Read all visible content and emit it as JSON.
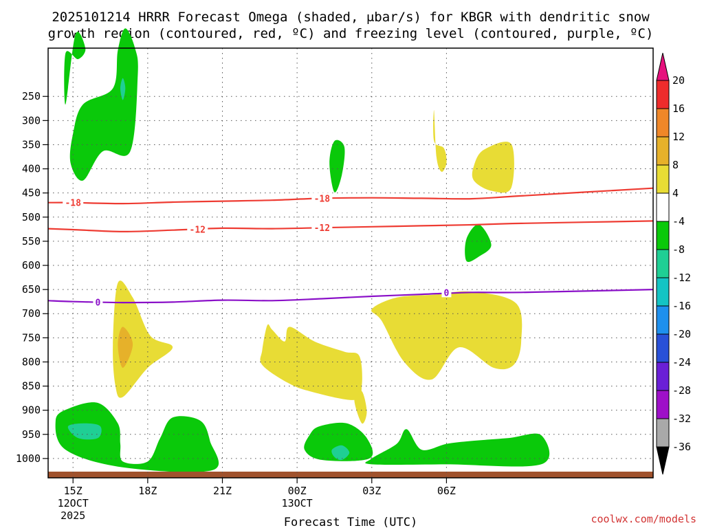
{
  "chart_data": {
    "type": "heatmap",
    "title_lines": [
      "2025101214 HRRR Forecast Omega (shaded, μbar/s) for KBGR with dendritic snow",
      "growth region (contoured, red, ºC) and freezing level (contoured, purple, ºC)"
    ],
    "xlabel": "Forecast Time (UTC)",
    "credit": "coolwx.com/models",
    "x_range_hours": [
      -1.0,
      23.3
    ],
    "y_range_hpa": [
      150,
      1040
    ],
    "y_ticks": [
      250,
      300,
      350,
      400,
      450,
      500,
      550,
      600,
      650,
      700,
      750,
      800,
      850,
      900,
      950,
      1000
    ],
    "x_ticks": [
      {
        "h": 0,
        "lines": [
          "15Z",
          "12OCT",
          "2025"
        ]
      },
      {
        "h": 3,
        "lines": [
          "18Z"
        ]
      },
      {
        "h": 6,
        "lines": [
          "21Z"
        ]
      },
      {
        "h": 9,
        "lines": [
          "00Z",
          "13OCT"
        ]
      },
      {
        "h": 12,
        "lines": [
          "03Z"
        ]
      },
      {
        "h": 15,
        "lines": [
          "06Z"
        ]
      }
    ],
    "colorbar": {
      "labels": [
        "20",
        "16",
        "12",
        "8",
        "4",
        "-4",
        "-8",
        "-12",
        "-16",
        "-20",
        "-24",
        "-28",
        "-32",
        "-36"
      ],
      "colors": [
        "#ee2c2c",
        "#ef8728",
        "#e6b12a",
        "#e8dc35",
        "#ffffff",
        "#0ac90a",
        "#1fcf94",
        "#14c4c4",
        "#1e90ee",
        "#2850d8",
        "#6a1fd6",
        "#9e10c8",
        "#a9a9a9"
      ],
      "top_color": "#e6117d",
      "bottom_color": "#000000"
    },
    "ground_color": "#a0522d",
    "regions": [
      {
        "level": "-4",
        "color": "#0ac90a",
        "pts": [
          [
            -0.3,
            440
          ],
          [
            0.1,
            200
          ],
          [
            0.5,
            250
          ],
          [
            0.2,
            285
          ],
          [
            -0.3,
            265
          ]
        ]
      },
      {
        "level": "-4",
        "color": "#0ac90a",
        "pts": [
          [
            -0.1,
            640
          ],
          [
            0.0,
            540
          ],
          [
            0.4,
            440
          ],
          [
            1.6,
            385
          ],
          [
            1.8,
            255
          ],
          [
            2.1,
            180
          ],
          [
            2.5,
            250
          ],
          [
            2.6,
            340
          ],
          [
            2.3,
            600
          ],
          [
            1.2,
            600
          ],
          [
            0.4,
            700
          ]
        ]
      },
      {
        "level": "-8",
        "color": "#1fcf94",
        "pts": [
          [
            1.9,
            385
          ],
          [
            2.0,
            350
          ],
          [
            2.1,
            385
          ],
          [
            2.0,
            425
          ]
        ]
      },
      {
        "level": "-4",
        "color": "#0ac90a",
        "pts": [
          [
            10.3,
            640
          ],
          [
            10.5,
            565
          ],
          [
            10.9,
            585
          ],
          [
            10.8,
            680
          ],
          [
            10.5,
            740
          ]
        ]
      },
      {
        "level": "4",
        "color": "#e8dc35",
        "pts": [
          [
            14.5,
            460
          ],
          [
            14.6,
            620
          ],
          [
            14.8,
            670
          ],
          [
            15.0,
            640
          ],
          [
            14.9,
            590
          ],
          [
            14.5,
            565
          ]
        ]
      },
      {
        "level": "4",
        "color": "#e8dc35",
        "pts": [
          [
            16.1,
            650
          ],
          [
            16.5,
            595
          ],
          [
            17.6,
            575
          ],
          [
            17.6,
            725
          ],
          [
            16.8,
            735
          ],
          [
            16.1,
            700
          ]
        ]
      },
      {
        "level": "-4",
        "color": "#0ac90a",
        "pts": [
          [
            15.8,
            975
          ],
          [
            15.8,
            900
          ],
          [
            16.3,
            850
          ],
          [
            16.8,
            920
          ],
          [
            16.3,
            960
          ]
        ]
      },
      {
        "level": "4",
        "color": "#e8dc35",
        "pts": [
          [
            1.6,
            1260
          ],
          [
            1.8,
            1050
          ],
          [
            2.4,
            1100
          ],
          [
            3.1,
            1230
          ],
          [
            4.0,
            1270
          ],
          [
            3.0,
            1340
          ],
          [
            2.0,
            1440
          ],
          [
            1.7,
            1400
          ]
        ]
      },
      {
        "level": "8",
        "color": "#e6b12a",
        "pts": [
          [
            1.8,
            1260
          ],
          [
            2.0,
            1200
          ],
          [
            2.4,
            1260
          ],
          [
            2.0,
            1340
          ]
        ]
      },
      {
        "level": "4",
        "color": "#e8dc35",
        "pts": [
          [
            8.5,
            1250
          ],
          [
            8.7,
            1200
          ],
          [
            9.7,
            1250
          ],
          [
            10.9,
            1285
          ],
          [
            11.5,
            1300
          ],
          [
            11.6,
            1400
          ],
          [
            11.3,
            1450
          ],
          [
            9.5,
            1420
          ],
          [
            8.6,
            1390
          ],
          [
            7.6,
            1330
          ],
          [
            7.6,
            1280
          ],
          [
            7.8,
            1195
          ],
          [
            8.0,
            1210
          ]
        ]
      },
      {
        "level": "4",
        "color": "#e8dc35",
        "pts": [
          [
            12.0,
            1140
          ],
          [
            13.0,
            1100
          ],
          [
            14.5,
            1090
          ],
          [
            16.0,
            1080
          ],
          [
            17.8,
            1120
          ],
          [
            18.0,
            1250
          ],
          [
            17.7,
            1330
          ],
          [
            16.9,
            1340
          ],
          [
            15.5,
            1270
          ],
          [
            14.4,
            1380
          ],
          [
            13.3,
            1320
          ],
          [
            12.4,
            1180
          ]
        ]
      },
      {
        "level": "4",
        "color": "#e8dc35",
        "pts": [
          [
            11.3,
            1450
          ],
          [
            11.6,
            1420
          ],
          [
            11.8,
            1490
          ],
          [
            11.6,
            1530
          ]
        ]
      },
      {
        "level": "-4",
        "color": "#0ac90a",
        "pts": [
          [
            -0.7,
            1520
          ],
          [
            -0.2,
            1480
          ],
          [
            1.0,
            1460
          ],
          [
            1.8,
            1530
          ],
          [
            1.9,
            1600
          ],
          [
            2.0,
            1660
          ],
          [
            3.0,
            1660
          ],
          [
            3.5,
            1580
          ],
          [
            4.0,
            1510
          ],
          [
            5.1,
            1520
          ],
          [
            5.5,
            1590
          ],
          [
            5.6,
            1690
          ],
          [
            2.0,
            1680
          ],
          [
            -0.3,
            1620
          ]
        ]
      },
      {
        "level": "-8",
        "color": "#1fcf94",
        "pts": [
          [
            -0.2,
            1540
          ],
          [
            0.5,
            1530
          ],
          [
            1.1,
            1540
          ],
          [
            1.0,
            1580
          ],
          [
            0.2,
            1580
          ]
        ]
      },
      {
        "level": "-4",
        "color": "#0ac90a",
        "pts": [
          [
            9.5,
            1570
          ],
          [
            9.9,
            1540
          ],
          [
            11.0,
            1530
          ],
          [
            11.8,
            1580
          ],
          [
            11.9,
            1650
          ],
          [
            10.0,
            1655
          ],
          [
            9.3,
            1620
          ]
        ]
      },
      {
        "level": "-8",
        "color": "#1fcf94",
        "pts": [
          [
            10.4,
            1620
          ],
          [
            10.8,
            1605
          ],
          [
            11.1,
            1630
          ],
          [
            10.8,
            1655
          ],
          [
            10.5,
            1645
          ]
        ]
      },
      {
        "level": "-4",
        "color": "#0ac90a",
        "pts": [
          [
            12.0,
            1650
          ],
          [
            13.0,
            1600
          ],
          [
            13.4,
            1550
          ],
          [
            14.0,
            1620
          ],
          [
            15.0,
            1600
          ],
          [
            16.0,
            1590
          ],
          [
            17.5,
            1580
          ],
          [
            18.8,
            1570
          ],
          [
            18.8,
            1670
          ],
          [
            15.0,
            1670
          ],
          [
            12.0,
            1670
          ]
        ]
      }
    ],
    "contours": [
      {
        "value": -18,
        "color": "#ee3b32",
        "x": [
          -1,
          0,
          2,
          4,
          6,
          8,
          10,
          12,
          14,
          16,
          18,
          23.3
        ],
        "y": [
          470,
          470,
          472,
          469,
          467,
          465,
          461,
          460,
          461,
          462,
          456,
          440
        ]
      },
      {
        "value": -12,
        "color": "#ee3b32",
        "x": [
          -1,
          0,
          2,
          4,
          6,
          8,
          10,
          12,
          14,
          16,
          18,
          23.3
        ],
        "y": [
          524,
          526,
          530,
          527,
          523,
          524,
          522,
          520,
          518,
          516,
          513,
          508
        ]
      },
      {
        "value": 0,
        "color": "#8a10c8",
        "x": [
          -1,
          0,
          2,
          4,
          6,
          8,
          10,
          12,
          14,
          16,
          18,
          23.3
        ],
        "y": [
          673,
          675,
          677,
          676,
          672,
          673,
          669,
          664,
          660,
          656,
          656,
          650
        ]
      }
    ],
    "contour_labels": [
      {
        "text": "-18",
        "color": "#ee3b32",
        "x": 0.0,
        "y": 470
      },
      {
        "text": "-18",
        "color": "#ee3b32",
        "x": 10.0,
        "y": 461
      },
      {
        "text": "-12",
        "color": "#ee3b32",
        "x": 5.0,
        "y": 525
      },
      {
        "text": "-12",
        "color": "#ee3b32",
        "x": 10.0,
        "y": 522
      },
      {
        "text": "0",
        "color": "#8a10c8",
        "x": 1.0,
        "y": 676
      },
      {
        "text": "0",
        "color": "#8a10c8",
        "x": 15.0,
        "y": 656
      }
    ]
  }
}
